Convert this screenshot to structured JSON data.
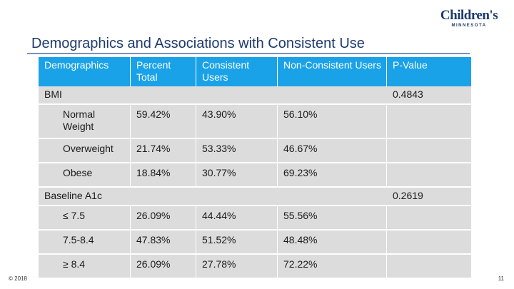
{
  "logo": {
    "name": "Children's",
    "sub": "MINNESOTA"
  },
  "title": "Demographics and Associations with Consistent Use",
  "table": {
    "headers": [
      "Demographics",
      "Percent Total",
      "Consistent Users",
      "Non-Consistent Users",
      "P-Value"
    ],
    "bmi": {
      "label": "BMI",
      "p_value": "0.4843",
      "rows": [
        {
          "label": "Normal Weight",
          "percent": "59.42%",
          "consistent": "43.90%",
          "nonconsistent": "56.10%"
        },
        {
          "label": "Overweight",
          "percent": "21.74%",
          "consistent": "53.33%",
          "nonconsistent": "46.67%"
        },
        {
          "label": "Obese",
          "percent": "18.84%",
          "consistent": "30.77%",
          "nonconsistent": "69.23%"
        }
      ]
    },
    "a1c": {
      "label": "Baseline A1c",
      "p_value": "0.2619",
      "rows": [
        {
          "label": "≤ 7.5",
          "percent": "26.09%",
          "consistent": "44.44%",
          "nonconsistent": "55.56%"
        },
        {
          "label": "7.5-8.4",
          "percent": "47.83%",
          "consistent": "51.52%",
          "nonconsistent": "48.48%"
        },
        {
          "label": "≥ 8.4",
          "percent": "26.09%",
          "consistent": "27.78%",
          "nonconsistent": "72.22%"
        }
      ]
    }
  },
  "footer": {
    "copyright": "© 2018",
    "page": "11"
  },
  "colors": {
    "header_bg": "#1aa2e8",
    "cell_bg": "#dcdcdc",
    "title": "#1e3a6e"
  }
}
